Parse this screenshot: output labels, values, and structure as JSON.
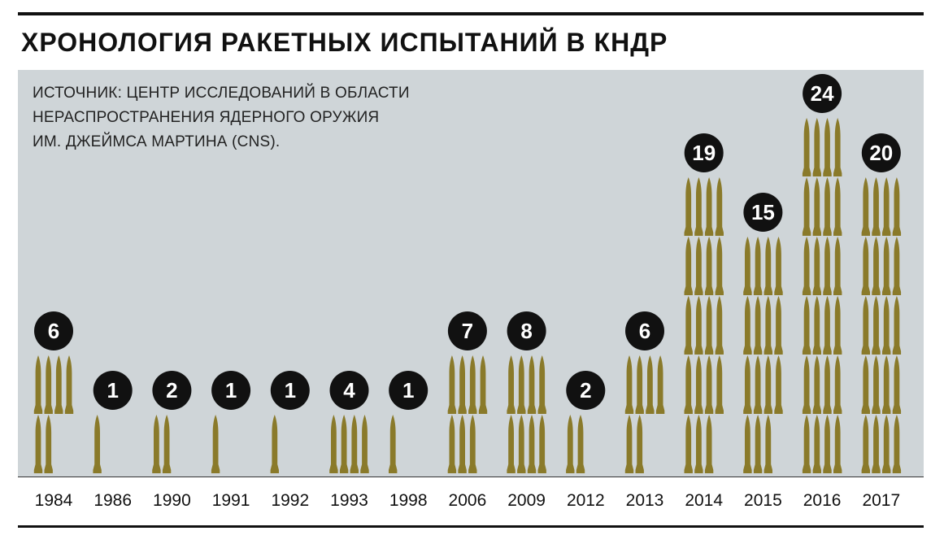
{
  "title": "ХРОНОЛОГИЯ РАКЕТНЫХ ИСПЫТАНИЙ В КНДР",
  "source": [
    "ИСТОЧНИК: ЦЕНТР ИССЛЕДОВАНИЙ В ОБЛАСТИ",
    "НЕРАСПРОСТРАНЕНИЯ ЯДЕРНОГО ОРУЖИЯ",
    "ИМ. ДЖЕЙМСА МАРТИНА (CNS)."
  ],
  "colors": {
    "panel": "#cfd5d8",
    "missile": "#8a7a2a",
    "badge": "#111111"
  },
  "icon": "missile-icon",
  "chart_data": {
    "type": "pictograph",
    "categories": [
      "1984",
      "1986",
      "1990",
      "1991",
      "1992",
      "1993",
      "1998",
      "2006",
      "2009",
      "2012",
      "2013",
      "2014",
      "2015",
      "2016",
      "2017"
    ],
    "values": [
      6,
      1,
      2,
      1,
      1,
      4,
      1,
      7,
      8,
      2,
      6,
      19,
      15,
      24,
      20
    ],
    "icons_per_row": 4
  }
}
